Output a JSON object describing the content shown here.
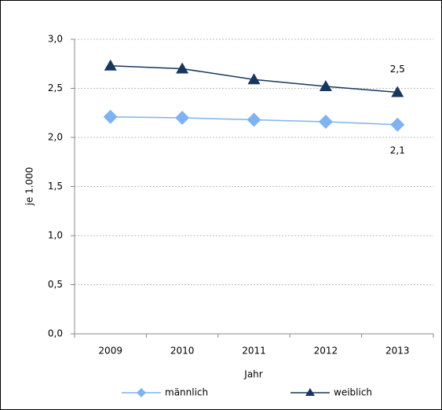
{
  "chart_data": {
    "type": "line",
    "y_label": "je 1.000",
    "x_label": "Jahr",
    "categories": [
      "2009",
      "2010",
      "2011",
      "2012",
      "2013"
    ],
    "series": [
      {
        "name": "männlich",
        "color": "#7fb2f0",
        "marker": "diamond",
        "values": [
          2.21,
          2.2,
          2.18,
          2.16,
          2.13
        ],
        "value_labels": [
          null,
          null,
          null,
          null,
          "2,1"
        ]
      },
      {
        "name": "weiblich",
        "color": "#17375e",
        "marker": "triangle",
        "values": [
          2.73,
          2.7,
          2.59,
          2.52,
          2.46
        ],
        "value_labels": [
          null,
          null,
          null,
          null,
          "2,5"
        ]
      }
    ],
    "ylim": [
      0,
      3
    ],
    "yticks": [
      {
        "value": 0,
        "label": "0,0"
      },
      {
        "value": 0.5,
        "label": "0,5"
      },
      {
        "value": 1,
        "label": "1,0"
      },
      {
        "value": 1.5,
        "label": "1,5"
      },
      {
        "value": 2,
        "label": "2,0"
      },
      {
        "value": 2.5,
        "label": "2,5"
      },
      {
        "value": 3,
        "label": "3,0"
      }
    ],
    "grid": true,
    "legend": "bottom"
  }
}
